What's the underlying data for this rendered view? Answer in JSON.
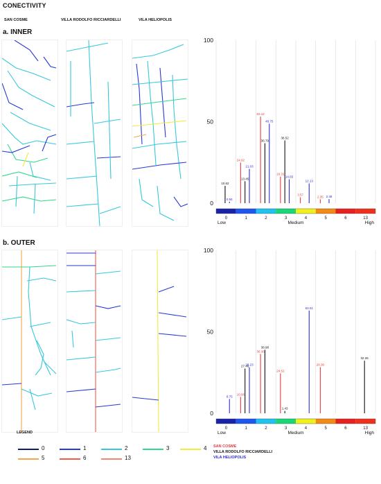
{
  "page": {
    "title": "CONECTIVITY",
    "columns": [
      "SAN COSME",
      "VILLA RODOLFO RICCIARDELLI",
      "VILA HELIOPOLIS"
    ],
    "sections": [
      "a. INNER",
      "b. OUTER"
    ]
  },
  "colors": {
    "0": "#101a6e",
    "1": "#2438d6",
    "2": "#34c8dc",
    "3": "#2fd88a",
    "4": "#f2ea3c",
    "5": "#f5a64c",
    "6": "#f05a4a",
    "13": "#f08870",
    "san_cosme": "#e8383a",
    "ricciardelli": "#111111",
    "heliopolis": "#2b2be0"
  },
  "scale": {
    "labels": [
      "0",
      "1",
      "2",
      "3",
      "4",
      "5",
      "6",
      "13"
    ],
    "colors": [
      "#1a23a8",
      "#1e56f0",
      "#1ec4ef",
      "#19d678",
      "#f0f01a",
      "#f28a16",
      "#e8201e",
      "#f0301a"
    ],
    "low": "Low",
    "medium": "Medium",
    "high": "High"
  },
  "legend": {
    "title": "LEGEND",
    "items": [
      {
        "label": "0",
        "color": "#101a6e"
      },
      {
        "label": "1",
        "color": "#2438d6"
      },
      {
        "label": "2",
        "color": "#34c8dc"
      },
      {
        "label": "3",
        "color": "#2fd88a"
      },
      {
        "label": "4",
        "color": "#f2ea3c"
      },
      {
        "label": "5",
        "color": "#f5a64c"
      },
      {
        "label": "6",
        "color": "#f05a4a"
      },
      {
        "label": "13",
        "color": "#f08870"
      }
    ],
    "owners": [
      {
        "label": "SAN COSME",
        "color": "#e8383a"
      },
      {
        "label": "VILLA RODOLFO RICCIARDELLI",
        "color": "#111111"
      },
      {
        "label": "VILA HELIOPOLIS",
        "color": "#2b2be0"
      }
    ]
  },
  "chart_data": [
    {
      "type": "bar",
      "title": "a. INNER",
      "ylim": [
        0,
        100
      ],
      "yticks": [
        0,
        50,
        100
      ],
      "categories": [
        "0",
        "1",
        "2",
        "3",
        "4",
        "5",
        "6",
        "13"
      ],
      "series": [
        {
          "name": "SAN COSME",
          "color": "#e8383a",
          "values": [
            null,
            24.92,
            53.12,
            16.31,
            3.57,
            2.35,
            null,
            null
          ],
          "labels": [
            "",
            "24.92",
            "53.12",
            "16.31",
            "3.57",
            "2.35",
            "",
            ""
          ]
        },
        {
          "name": "VILLA RODOLFO RICCIARDELLI",
          "color": "#111111",
          "values": [
            10.62,
            13.45,
            36.79,
            38.52,
            null,
            null,
            null,
            null
          ],
          "labels": [
            "10.62",
            "13.45",
            "36.79",
            "38.52",
            "",
            "",
            "",
            ""
          ]
        },
        {
          "name": "VILA HELIOPOLIS",
          "color": "#2b2be0",
          "values": [
            0.94,
            21.03,
            48.75,
            14.65,
            12.13,
            2.48,
            null,
            null
          ],
          "labels": [
            "0.94",
            "21.03",
            "48.75",
            "14.65",
            "12.13",
            "2.48",
            "",
            ""
          ]
        }
      ]
    },
    {
      "type": "bar",
      "title": "b. OUTER",
      "ylim": [
        0,
        100
      ],
      "yticks": [
        0,
        50,
        100
      ],
      "categories": [
        "0",
        "1",
        "2",
        "3",
        "4",
        "5",
        "6",
        "13"
      ],
      "series": [
        {
          "name": "SAN COSME",
          "color": "#e8383a",
          "values": [
            null,
            10.06,
            36.36,
            24.52,
            null,
            28.3,
            null,
            null
          ],
          "labels": [
            "",
            "10.06",
            "36.36",
            "24.52",
            "",
            "28.30",
            "",
            ""
          ]
        },
        {
          "name": "VILLA RODOLFO RICCIARDELLI",
          "color": "#111111",
          "values": [
            null,
            27.46,
            38.98,
            1.43,
            null,
            null,
            null,
            32.26
          ],
          "labels": [
            "",
            "27.46",
            "38.98",
            "1.43",
            "",
            "",
            "",
            "32.26"
          ]
        },
        {
          "name": "VILA HELIOPOLIS",
          "color": "#2b2be0",
          "values": [
            8.75,
            28.23,
            null,
            null,
            63.01,
            null,
            null,
            null
          ],
          "labels": [
            "8.75",
            "28.23",
            "",
            "",
            "63.01",
            "",
            "",
            ""
          ]
        }
      ]
    }
  ]
}
